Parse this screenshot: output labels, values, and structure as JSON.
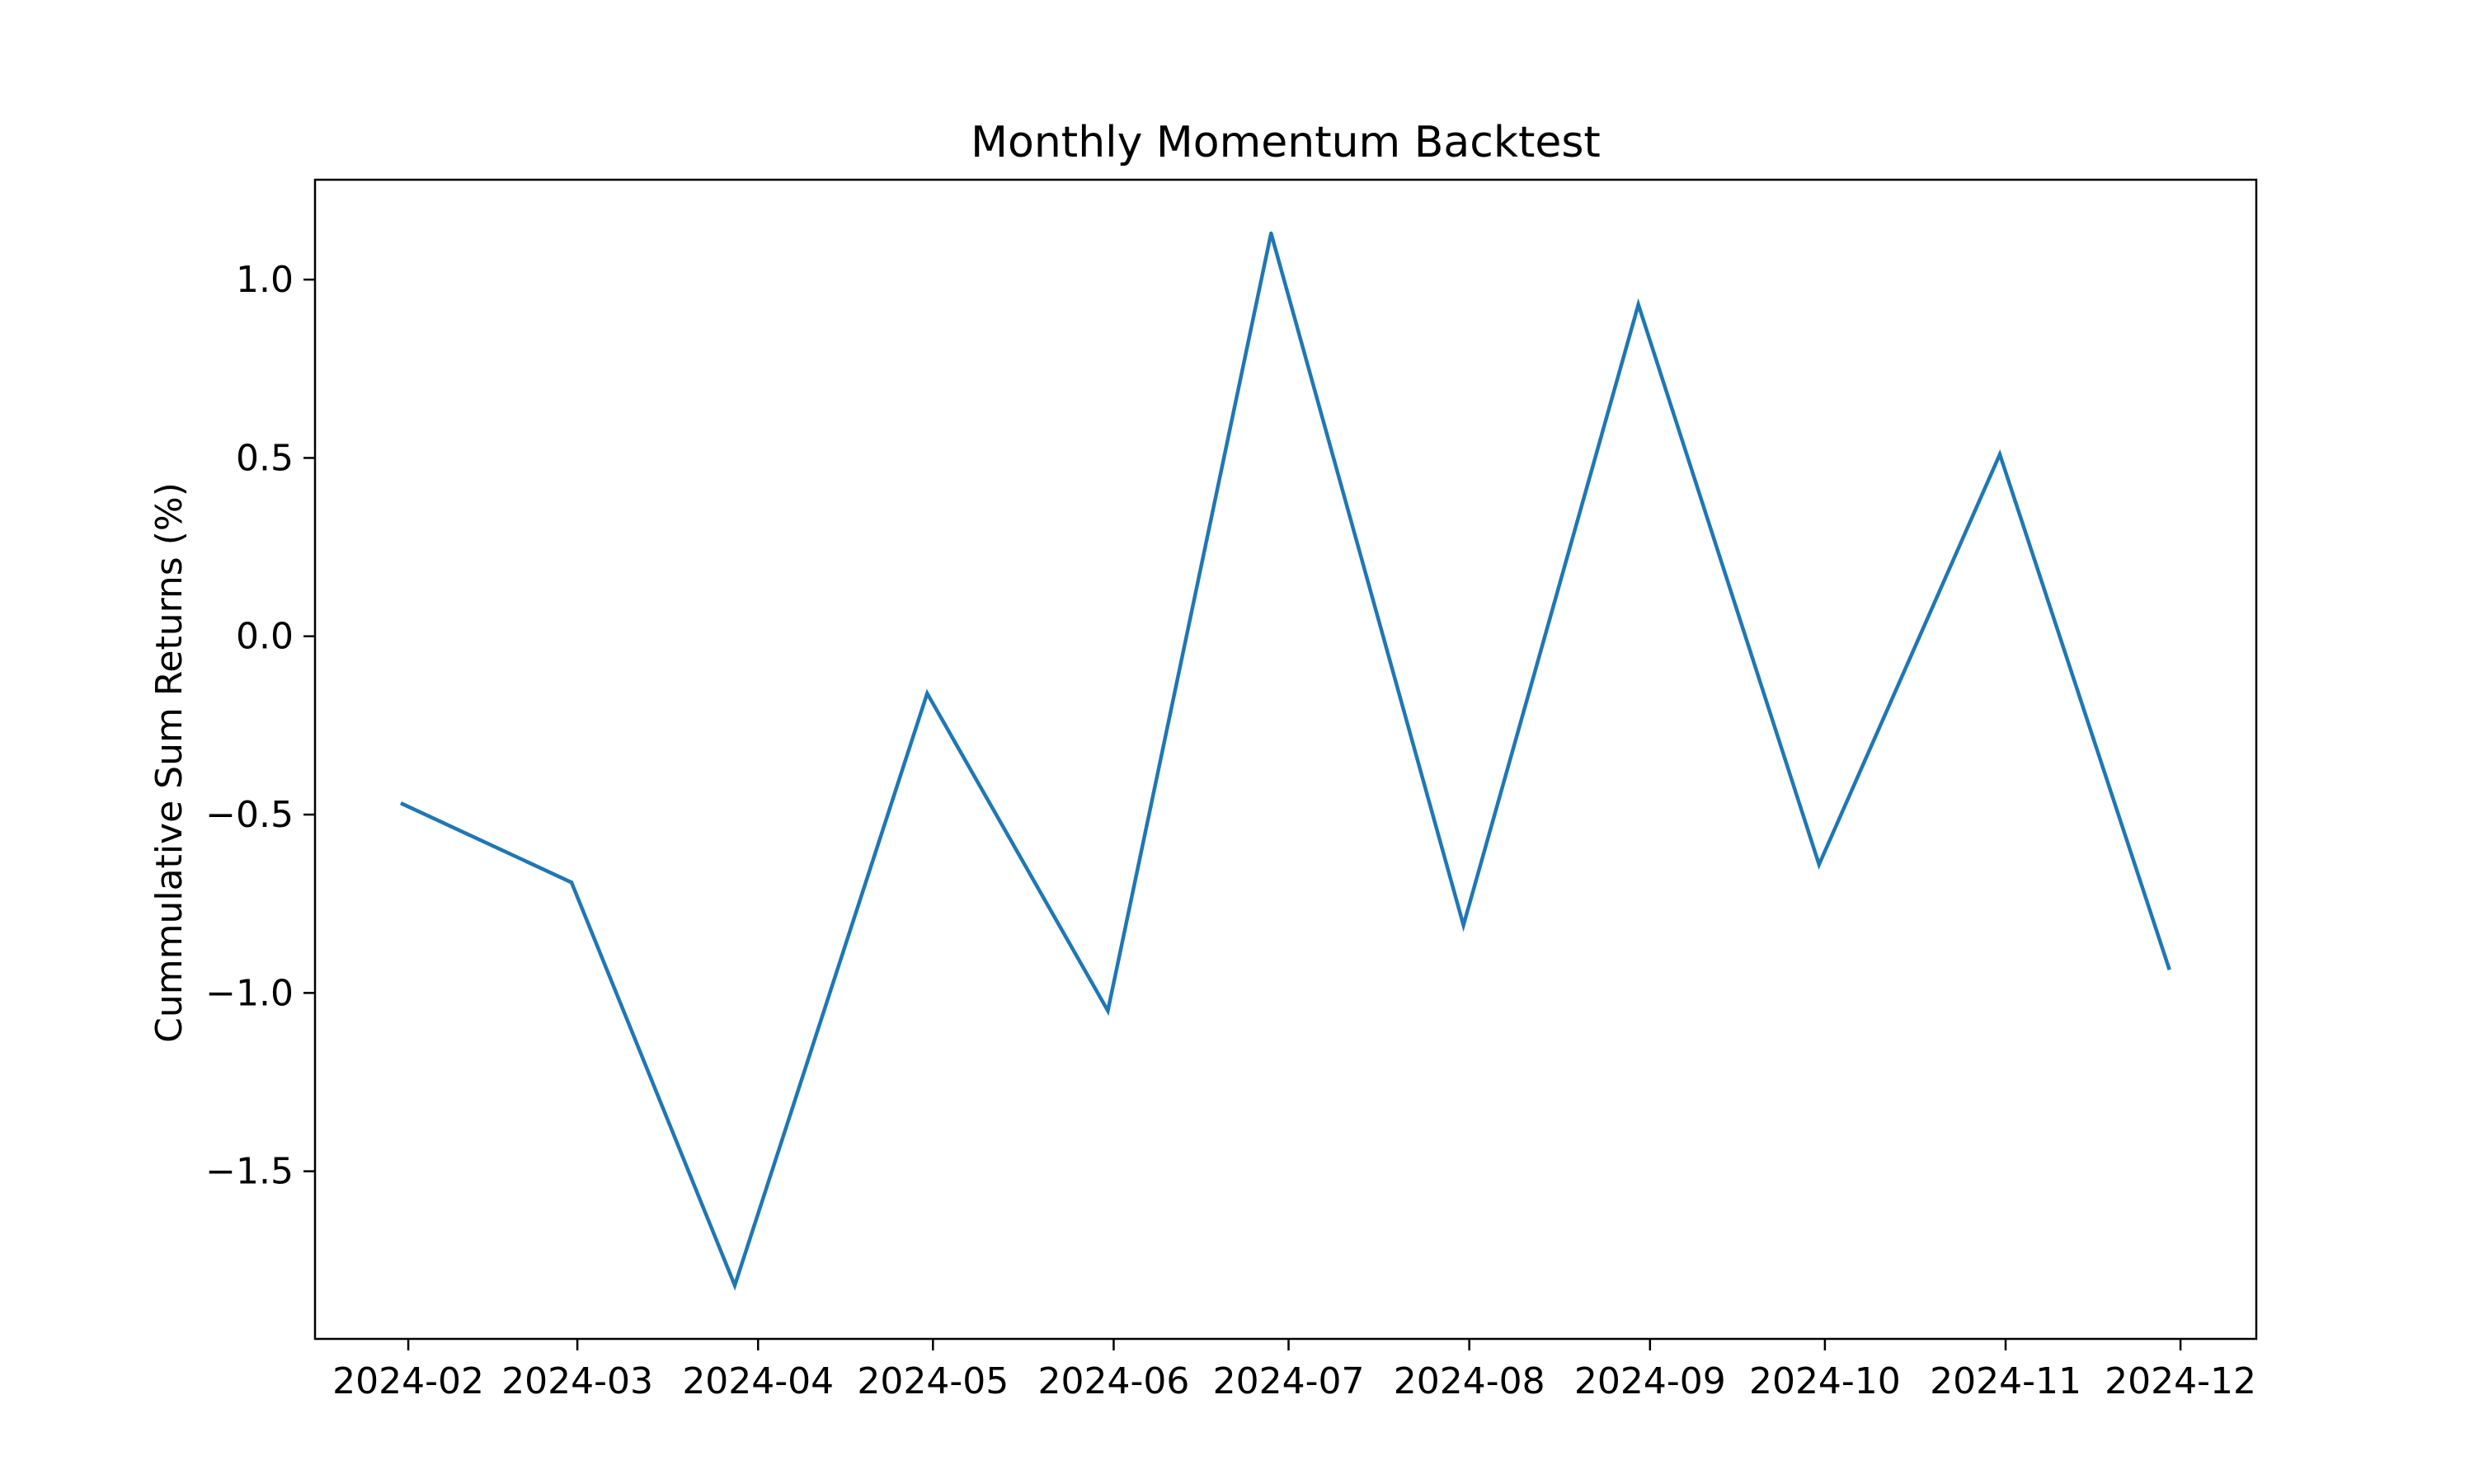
{
  "chart_data": {
    "type": "line",
    "title": "Monthly Momentum Backtest",
    "xlabel": "",
    "ylabel": "Cummulative Sum Returns (%)",
    "x": [
      "2024-01-31",
      "2024-02-29",
      "2024-03-28",
      "2024-04-30",
      "2024-05-31",
      "2024-06-28",
      "2024-07-31",
      "2024-08-30",
      "2024-09-30",
      "2024-10-31",
      "2024-11-29"
    ],
    "series": [
      {
        "name": "",
        "color": "#1f77b4",
        "values": [
          -0.47,
          -0.69,
          -1.82,
          -0.16,
          -1.05,
          1.13,
          -0.81,
          0.93,
          -0.64,
          0.51,
          -0.93
        ]
      }
    ],
    "x_ticks": [
      "2024-02",
      "2024-03",
      "2024-04",
      "2024-05",
      "2024-06",
      "2024-07",
      "2024-08",
      "2024-09",
      "2024-10",
      "2024-11",
      "2024-12"
    ],
    "y_ticks": [
      -1.5,
      -1.0,
      -0.5,
      0.0,
      0.5,
      1.0
    ],
    "y_tick_labels": [
      "−1.5",
      "−1.0",
      "−0.5",
      "0.0",
      "0.5",
      "1.0"
    ],
    "ylim": [
      -1.97,
      1.28
    ],
    "xlim": [
      "2024-01-16",
      "2024-12-14"
    ],
    "grid": false,
    "legend": "none"
  }
}
